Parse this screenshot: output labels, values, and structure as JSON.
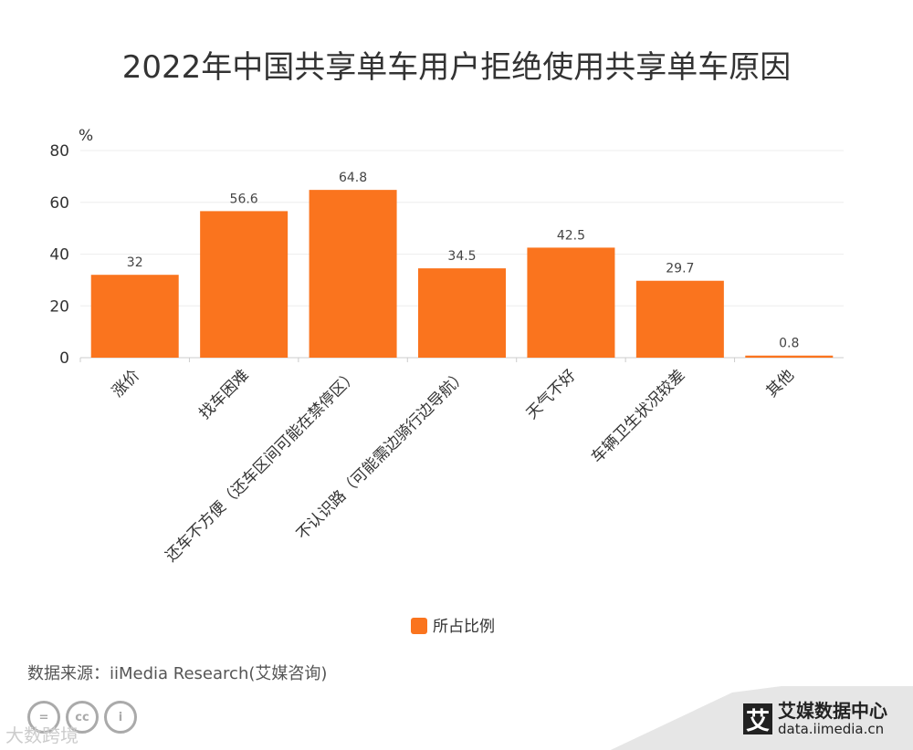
{
  "chart_data": {
    "type": "bar",
    "title": "2022年中国共享单车用户拒绝使用共享单车原因",
    "ylabel": "%",
    "xlabel": "",
    "ylim": [
      0,
      80
    ],
    "yticks": [
      0,
      20,
      40,
      60,
      80
    ],
    "categories": [
      "涨价",
      "找车困难",
      "还车不方便（还车区间可能在禁停区）",
      "不认识路（可能需边骑行边导航）",
      "天气不好",
      "车辆卫生状况较差",
      "其他"
    ],
    "series": [
      {
        "name": "所占比例",
        "values": [
          32,
          56.6,
          64.8,
          34.5,
          42.5,
          29.7,
          0.8
        ]
      }
    ],
    "value_labels": [
      "32",
      "56.6",
      "64.8",
      "34.5",
      "42.5",
      "29.7",
      "0.8"
    ],
    "legend": "bottom-center",
    "grid": true,
    "color": "#fa741e"
  },
  "source": "数据来源：iiMedia Research(艾媒咨询)",
  "watermark": "大数跨境",
  "brand": {
    "name": "艾媒数据中心",
    "url": "data.iimedia.cn",
    "icon_char": "艾"
  },
  "cc_icons": [
    "=",
    "cc",
    "i"
  ]
}
